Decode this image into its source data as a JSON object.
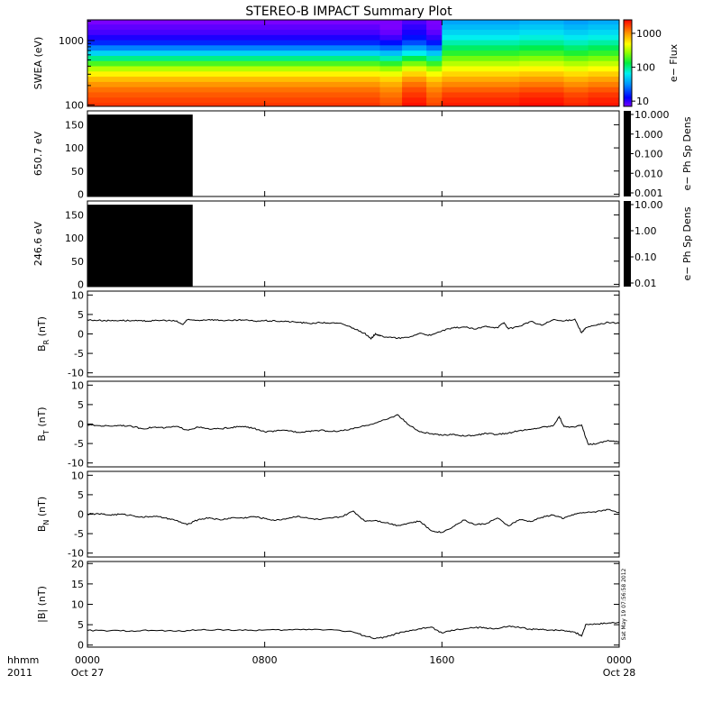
{
  "chart_data": {
    "type": "line",
    "title": "STEREO-B IMPACT Summary Plot",
    "time_axis": {
      "range_hours": [
        0,
        24
      ],
      "ticks": [
        {
          "hours": 0,
          "hhmm": "0000",
          "date": "Oct 27"
        },
        {
          "hours": 8,
          "hhmm": "0800",
          "date": ""
        },
        {
          "hours": 16,
          "hhmm": "1600",
          "date": ""
        },
        {
          "hours": 24,
          "hhmm": "0000",
          "date": "Oct 28"
        }
      ],
      "row_labels": [
        "hhmm",
        "2011"
      ]
    },
    "timestamp": "Sat May 19 07:56:58 2012",
    "panels": [
      {
        "id": "swea",
        "type": "heatmap",
        "ylabel": "SWEA (eV)",
        "yscale": "log",
        "ylim": [
          95,
          2100
        ],
        "yticks": [
          {
            "value": 100,
            "label": "100"
          },
          {
            "value": 1000,
            "label": "1000"
          }
        ],
        "colorbar": {
          "label": "e− Flux",
          "scale": "log",
          "range": [
            7,
            2500
          ],
          "ticks": [
            {
              "value": 10,
              "label": "10"
            },
            {
              "value": 100,
              "label": "100"
            },
            {
              "value": 1000,
              "label": "1000"
            }
          ]
        },
        "energy_bins_eV": [
          100,
          120,
          145,
          175,
          210,
          255,
          305,
          370,
          445,
          535,
          645,
          780,
          940,
          1130,
          1360,
          1640,
          1980
        ],
        "time_cut_hours": [
          0,
          9.5,
          13.2,
          14.2,
          15.3,
          16.0,
          19.5,
          21.5,
          22.6,
          24
        ],
        "flux_scale_per_cut": [
          1.0,
          1.0,
          0.85,
          1.25,
          0.9,
          1.0,
          1.1,
          0.95,
          1.05
        ],
        "flux_profile_pre_1530": [
          1800,
          1650,
          1450,
          1250,
          1000,
          760,
          520,
          330,
          190,
          100,
          52,
          28,
          16,
          11,
          9,
          8,
          7
        ],
        "flux_profile_post_1530": [
          2100,
          1950,
          1700,
          1400,
          1100,
          860,
          640,
          460,
          330,
          230,
          160,
          115,
          85,
          65,
          52,
          43,
          36
        ]
      },
      {
        "id": "psd-650",
        "type": "area",
        "ylabel": "650.7 eV",
        "ylim": [
          -5,
          180
        ],
        "yticks": [
          0,
          50,
          100,
          150
        ],
        "block_hours": [
          0,
          4.75
        ],
        "block_top": 172,
        "colorbar": {
          "label": "e− Ph Sp Dens",
          "scale": "log",
          "ticks": [
            "10.000",
            "1.000",
            "0.100",
            "0.010",
            "0.001"
          ]
        }
      },
      {
        "id": "psd-246",
        "type": "area",
        "ylabel": "246.6 eV",
        "ylim": [
          -5,
          180
        ],
        "yticks": [
          0,
          50,
          100,
          150
        ],
        "block_hours": [
          0,
          4.75
        ],
        "block_top": 172,
        "colorbar": {
          "label": "e− Ph Sp Dens",
          "scale": "log",
          "ticks": [
            "10.00",
            "1.00",
            "0.10",
            "0.01"
          ]
        }
      },
      {
        "id": "br",
        "type": "line",
        "ylabel_main": "B",
        "ylabel_sub": "R",
        "ylabel_unit": " (nT)",
        "ylim": [
          -11,
          11
        ],
        "yticks": [
          10,
          5,
          0,
          -5,
          -10
        ],
        "x_hours": [
          0,
          0.5,
          1,
          1.5,
          2,
          2.5,
          3,
          3.5,
          4,
          4.3,
          4.5,
          5,
          5.5,
          6,
          6.5,
          7,
          7.5,
          8,
          8.5,
          9,
          9.5,
          10,
          10.5,
          11,
          11.5,
          12,
          12.5,
          12.8,
          13,
          13.2,
          13.5,
          14,
          14.5,
          15,
          15.5,
          16,
          16.5,
          17,
          17.5,
          18,
          18.5,
          18.8,
          19,
          19.5,
          20,
          20.5,
          21,
          21.5,
          22,
          22.3,
          22.5,
          23,
          23.5,
          24
        ],
        "y_nT": [
          3.6,
          3.5,
          3.4,
          3.5,
          3.4,
          3.3,
          3.4,
          3.5,
          3.3,
          2.4,
          3.6,
          3.5,
          3.7,
          3.5,
          3.4,
          3.6,
          3.3,
          3.4,
          3.3,
          3.2,
          3.0,
          2.7,
          2.9,
          2.8,
          2.6,
          1.5,
          0.2,
          -1.3,
          0.1,
          -0.5,
          -0.8,
          -1.1,
          -0.9,
          0.2,
          -0.4,
          0.8,
          1.5,
          1.8,
          1.2,
          2.0,
          1.6,
          2.9,
          1.3,
          2.0,
          3.2,
          2.2,
          3.6,
          3.3,
          3.8,
          0.3,
          1.6,
          2.3,
          3.0,
          2.7
        ]
      },
      {
        "id": "bt",
        "type": "line",
        "ylabel_main": "B",
        "ylabel_sub": "T",
        "ylabel_unit": " (nT)",
        "ylim": [
          -11,
          11
        ],
        "yticks": [
          10,
          5,
          0,
          -5,
          -10
        ],
        "x_hours": [
          0,
          0.5,
          1,
          1.5,
          2,
          2.5,
          3,
          3.5,
          4,
          4.5,
          5,
          5.5,
          6,
          6.5,
          7,
          7.5,
          8,
          8.5,
          9,
          9.5,
          10,
          10.5,
          11,
          11.5,
          12,
          12.5,
          13,
          13.5,
          14,
          14.5,
          15,
          15.5,
          16,
          16.5,
          17,
          17.5,
          18,
          18.5,
          19,
          19.5,
          20,
          20.5,
          21,
          21.3,
          21.5,
          22,
          22.3,
          22.6,
          23,
          23.5,
          24
        ],
        "y_nT": [
          -0.2,
          -0.4,
          -0.5,
          -0.3,
          -0.6,
          -1.2,
          -0.8,
          -1.0,
          -0.6,
          -1.5,
          -0.8,
          -1.3,
          -1.2,
          -0.9,
          -0.6,
          -1.1,
          -2.0,
          -1.8,
          -1.6,
          -2.1,
          -1.8,
          -1.6,
          -1.9,
          -1.7,
          -1.2,
          -0.5,
          0.3,
          1.2,
          2.4,
          -0.2,
          -2.0,
          -2.5,
          -2.9,
          -2.6,
          -3.1,
          -2.9,
          -2.4,
          -2.7,
          -2.3,
          -1.7,
          -1.4,
          -0.8,
          -0.5,
          1.9,
          -0.6,
          -0.8,
          -0.2,
          -5.2,
          -5.0,
          -4.2,
          -4.6
        ]
      },
      {
        "id": "bn",
        "type": "line",
        "ylabel_main": "B",
        "ylabel_sub": "N",
        "ylabel_unit": " (nT)",
        "ylim": [
          -11,
          11
        ],
        "yticks": [
          10,
          5,
          0,
          -5,
          -10
        ],
        "x_hours": [
          0,
          0.5,
          1,
          1.5,
          2,
          2.5,
          3,
          3.5,
          4,
          4.5,
          5,
          5.5,
          6,
          6.5,
          7,
          7.5,
          8,
          8.5,
          9,
          9.5,
          10,
          10.5,
          11,
          11.5,
          12,
          12.5,
          13,
          13.5,
          14,
          14.5,
          15,
          15.5,
          16,
          16.5,
          17,
          17.5,
          18,
          18.5,
          19,
          19.5,
          20,
          20.5,
          21,
          21.5,
          22,
          22.5,
          23,
          23.5,
          24
        ],
        "y_nT": [
          0.0,
          0.1,
          -0.2,
          0.0,
          -0.3,
          -0.8,
          -0.5,
          -1.0,
          -1.6,
          -2.7,
          -1.4,
          -0.9,
          -1.5,
          -0.9,
          -1.0,
          -0.6,
          -1.1,
          -1.6,
          -1.1,
          -0.5,
          -1.1,
          -1.4,
          -1.0,
          -0.6,
          0.8,
          -1.7,
          -1.6,
          -2.2,
          -2.9,
          -2.3,
          -1.8,
          -4.2,
          -4.7,
          -3.2,
          -1.5,
          -2.7,
          -2.4,
          -1.0,
          -3.0,
          -1.4,
          -1.9,
          -0.8,
          -0.2,
          -1.1,
          0.1,
          0.4,
          0.7,
          1.2,
          0.5
        ]
      },
      {
        "id": "bmag",
        "type": "line",
        "ylabel_main": "|B|",
        "ylabel_sub": "",
        "ylabel_unit": " (nT)",
        "ylim": [
          -0.5,
          20.5
        ],
        "yticks": [
          20,
          15,
          10,
          5,
          0
        ],
        "x_hours": [
          0,
          1,
          2,
          3,
          4,
          5,
          6,
          7,
          8,
          9,
          10,
          11,
          12,
          12.5,
          13,
          13.5,
          14,
          14.5,
          15,
          15.5,
          16,
          16.5,
          17,
          17.5,
          18,
          18.5,
          19,
          19.5,
          20,
          20.5,
          21,
          21.5,
          22,
          22.3,
          22.5,
          23,
          23.5,
          24
        ],
        "y_nT": [
          3.6,
          3.5,
          3.5,
          3.6,
          3.4,
          3.7,
          3.8,
          3.6,
          3.7,
          3.7,
          3.9,
          3.8,
          3.2,
          2.3,
          1.6,
          2.0,
          2.9,
          3.4,
          4.0,
          4.4,
          3.0,
          3.6,
          4.0,
          4.3,
          4.2,
          4.0,
          4.6,
          4.3,
          3.9,
          3.8,
          3.7,
          3.6,
          3.2,
          2.2,
          5.1,
          5.2,
          5.4,
          5.6
        ]
      }
    ]
  }
}
